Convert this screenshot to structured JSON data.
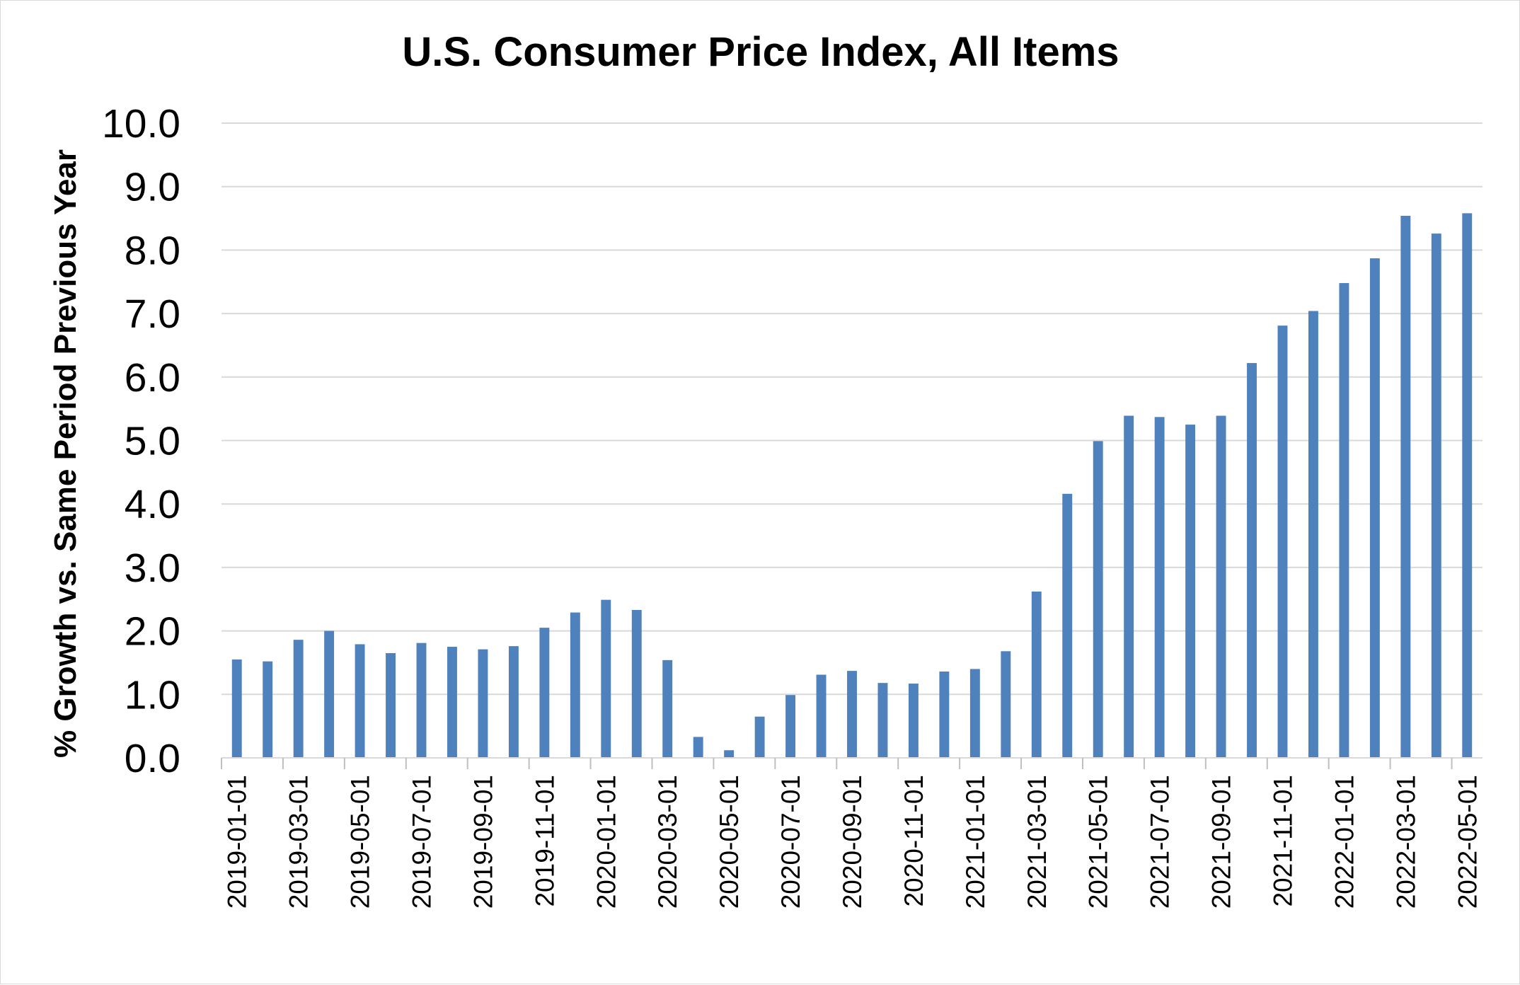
{
  "chart_data": {
    "type": "bar",
    "title": "U.S. Consumer Price Index, All Items",
    "xlabel": "",
    "ylabel": "% Growth vs. Same Period Previous Year",
    "ylim": [
      0,
      10
    ],
    "yticks": [
      "0.0",
      "1.0",
      "2.0",
      "3.0",
      "4.0",
      "5.0",
      "6.0",
      "7.0",
      "8.0",
      "9.0",
      "10.0"
    ],
    "grid": true,
    "legend": "none",
    "bar_color": "#4f81bd",
    "categories": [
      "2019-01-01",
      "2019-02-01",
      "2019-03-01",
      "2019-04-01",
      "2019-05-01",
      "2019-06-01",
      "2019-07-01",
      "2019-08-01",
      "2019-09-01",
      "2019-10-01",
      "2019-11-01",
      "2019-12-01",
      "2020-01-01",
      "2020-02-01",
      "2020-03-01",
      "2020-04-01",
      "2020-05-01",
      "2020-06-01",
      "2020-07-01",
      "2020-08-01",
      "2020-09-01",
      "2020-10-01",
      "2020-11-01",
      "2020-12-01",
      "2021-01-01",
      "2021-02-01",
      "2021-03-01",
      "2021-04-01",
      "2021-05-01",
      "2021-06-01",
      "2021-07-01",
      "2021-08-01",
      "2021-09-01",
      "2021-10-01",
      "2021-11-01",
      "2021-12-01",
      "2022-01-01",
      "2022-02-01",
      "2022-03-01",
      "2022-04-01",
      "2022-05-01"
    ],
    "tick_labels": [
      "2019-01-01",
      "2019-03-01",
      "2019-05-01",
      "2019-07-01",
      "2019-09-01",
      "2019-11-01",
      "2020-01-01",
      "2020-03-01",
      "2020-05-01",
      "2020-07-01",
      "2020-09-01",
      "2020-11-01",
      "2021-01-01",
      "2021-03-01",
      "2021-05-01",
      "2021-07-01",
      "2021-09-01",
      "2021-11-01",
      "2022-01-01",
      "2022-03-01",
      "2022-05-01"
    ],
    "values": [
      1.55,
      1.52,
      1.86,
      2.0,
      1.79,
      1.65,
      1.81,
      1.75,
      1.71,
      1.76,
      2.05,
      2.29,
      2.49,
      2.33,
      1.54,
      0.33,
      0.12,
      0.65,
      0.99,
      1.31,
      1.37,
      1.18,
      1.17,
      1.36,
      1.4,
      1.68,
      2.62,
      4.16,
      4.99,
      5.39,
      5.37,
      5.25,
      5.39,
      6.22,
      6.81,
      7.04,
      7.48,
      7.87,
      8.54,
      8.26,
      8.58
    ]
  }
}
